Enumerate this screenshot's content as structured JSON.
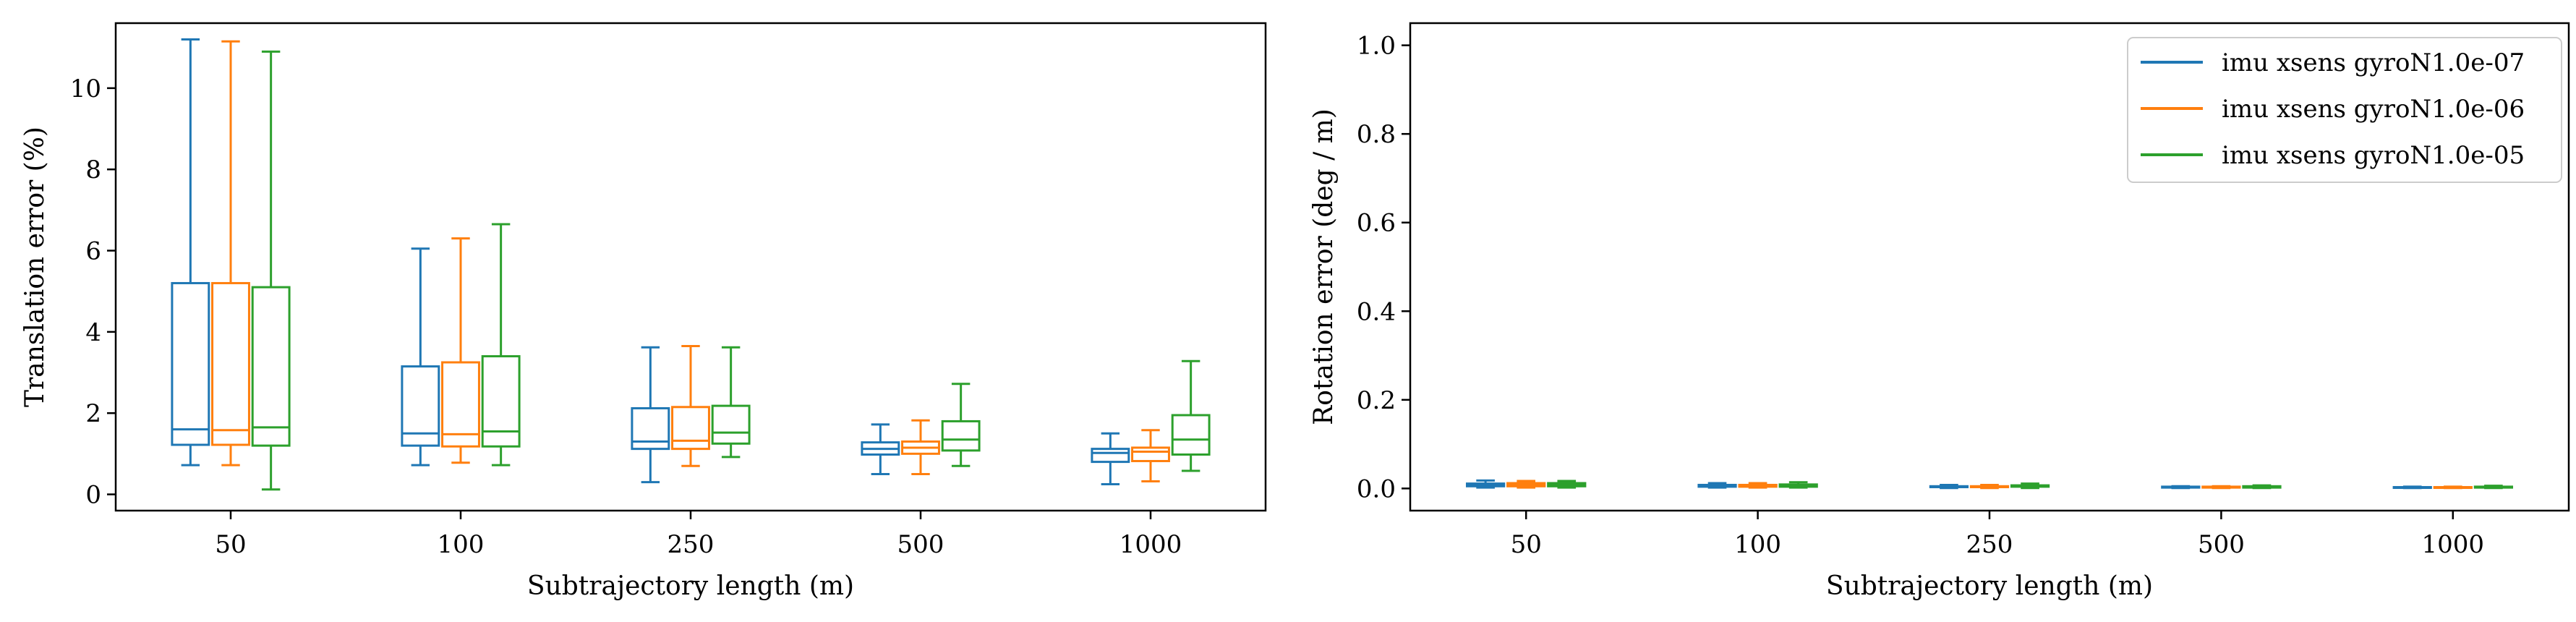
{
  "colors": {
    "series": [
      "#1f77b4",
      "#ff7f0e",
      "#2ca02c"
    ],
    "axis": "#000000"
  },
  "chart_data": [
    {
      "type": "boxplot",
      "title": "",
      "xlabel": "Subtrajectory length (m)",
      "ylabel": "Translation error (%)",
      "categories": [
        "50",
        "100",
        "250",
        "500",
        "1000"
      ],
      "ylim": [
        -0.4,
        11.6
      ],
      "yticks": [
        0,
        2,
        4,
        6,
        8,
        10
      ],
      "ytick_labels": [
        "0",
        "2",
        "4",
        "6",
        "8",
        "10"
      ],
      "legend": null,
      "series": [
        {
          "name": "imu xsens gyroN1.0e-07",
          "boxes": [
            {
              "whisker_low": 0.72,
              "q1": 1.22,
              "median": 1.6,
              "q3": 5.2,
              "whisker_high": 11.2
            },
            {
              "whisker_low": 0.72,
              "q1": 1.2,
              "median": 1.5,
              "q3": 3.15,
              "whisker_high": 6.05
            },
            {
              "whisker_low": 0.3,
              "q1": 1.12,
              "median": 1.3,
              "q3": 2.12,
              "whisker_high": 3.62
            },
            {
              "whisker_low": 0.5,
              "q1": 0.98,
              "median": 1.12,
              "q3": 1.28,
              "whisker_high": 1.72
            },
            {
              "whisker_low": 0.25,
              "q1": 0.8,
              "median": 1.02,
              "q3": 1.12,
              "whisker_high": 1.5
            }
          ]
        },
        {
          "name": "imu xsens gyroN1.0e-06",
          "boxes": [
            {
              "whisker_low": 0.72,
              "q1": 1.22,
              "median": 1.58,
              "q3": 5.2,
              "whisker_high": 11.15
            },
            {
              "whisker_low": 0.78,
              "q1": 1.18,
              "median": 1.48,
              "q3": 3.25,
              "whisker_high": 6.3
            },
            {
              "whisker_low": 0.7,
              "q1": 1.12,
              "median": 1.32,
              "q3": 2.15,
              "whisker_high": 3.65
            },
            {
              "whisker_low": 0.5,
              "q1": 1.0,
              "median": 1.15,
              "q3": 1.3,
              "whisker_high": 1.82
            },
            {
              "whisker_low": 0.32,
              "q1": 0.82,
              "median": 1.05,
              "q3": 1.15,
              "whisker_high": 1.58
            }
          ]
        },
        {
          "name": "imu xsens gyroN1.0e-05",
          "boxes": [
            {
              "whisker_low": 0.12,
              "q1": 1.2,
              "median": 1.65,
              "q3": 5.1,
              "whisker_high": 10.9
            },
            {
              "whisker_low": 0.72,
              "q1": 1.18,
              "median": 1.55,
              "q3": 3.4,
              "whisker_high": 6.65
            },
            {
              "whisker_low": 0.92,
              "q1": 1.25,
              "median": 1.52,
              "q3": 2.18,
              "whisker_high": 3.62
            },
            {
              "whisker_low": 0.7,
              "q1": 1.08,
              "median": 1.35,
              "q3": 1.8,
              "whisker_high": 2.72
            },
            {
              "whisker_low": 0.58,
              "q1": 0.98,
              "median": 1.35,
              "q3": 1.95,
              "whisker_high": 3.28
            }
          ]
        }
      ]
    },
    {
      "type": "boxplot",
      "title": "",
      "xlabel": "Subtrajectory length (m)",
      "ylabel": "Rotation error (deg / m)",
      "categories": [
        "50",
        "100",
        "250",
        "500",
        "1000"
      ],
      "ylim": [
        -0.05,
        1.05
      ],
      "yticks": [
        0.0,
        0.2,
        0.4,
        0.6,
        0.8,
        1.0
      ],
      "ytick_labels": [
        "0.0",
        "0.2",
        "0.4",
        "0.6",
        "0.8",
        "1.0"
      ],
      "legend": "top-right",
      "series": [
        {
          "name": "imu xsens gyroN1.0e-07",
          "boxes": [
            {
              "whisker_low": 0.002,
              "q1": 0.005,
              "median": 0.008,
              "q3": 0.011,
              "whisker_high": 0.018
            },
            {
              "whisker_low": 0.002,
              "q1": 0.004,
              "median": 0.006,
              "q3": 0.008,
              "whisker_high": 0.012
            },
            {
              "whisker_low": 0.001,
              "q1": 0.003,
              "median": 0.004,
              "q3": 0.005,
              "whisker_high": 0.008
            },
            {
              "whisker_low": 0.001,
              "q1": 0.002,
              "median": 0.003,
              "q3": 0.004,
              "whisker_high": 0.005
            },
            {
              "whisker_low": 0.001,
              "q1": 0.002,
              "median": 0.002,
              "q3": 0.003,
              "whisker_high": 0.004
            }
          ]
        },
        {
          "name": "imu xsens gyroN1.0e-06",
          "boxes": [
            {
              "whisker_low": 0.002,
              "q1": 0.005,
              "median": 0.008,
              "q3": 0.012,
              "whisker_high": 0.017
            },
            {
              "whisker_low": 0.002,
              "q1": 0.004,
              "median": 0.006,
              "q3": 0.008,
              "whisker_high": 0.012
            },
            {
              "whisker_low": 0.001,
              "q1": 0.003,
              "median": 0.004,
              "q3": 0.005,
              "whisker_high": 0.008
            },
            {
              "whisker_low": 0.001,
              "q1": 0.002,
              "median": 0.003,
              "q3": 0.004,
              "whisker_high": 0.005
            },
            {
              "whisker_low": 0.001,
              "q1": 0.002,
              "median": 0.002,
              "q3": 0.003,
              "whisker_high": 0.004
            }
          ]
        },
        {
          "name": "imu xsens gyroN1.0e-05",
          "boxes": [
            {
              "whisker_low": 0.002,
              "q1": 0.005,
              "median": 0.008,
              "q3": 0.012,
              "whisker_high": 0.017
            },
            {
              "whisker_low": 0.002,
              "q1": 0.004,
              "median": 0.007,
              "q3": 0.009,
              "whisker_high": 0.014
            },
            {
              "whisker_low": 0.001,
              "q1": 0.004,
              "median": 0.005,
              "q3": 0.007,
              "whisker_high": 0.011
            },
            {
              "whisker_low": 0.001,
              "q1": 0.002,
              "median": 0.003,
              "q3": 0.005,
              "whisker_high": 0.007
            },
            {
              "whisker_low": 0.001,
              "q1": 0.002,
              "median": 0.003,
              "q3": 0.004,
              "whisker_high": 0.006
            }
          ]
        }
      ]
    }
  ]
}
